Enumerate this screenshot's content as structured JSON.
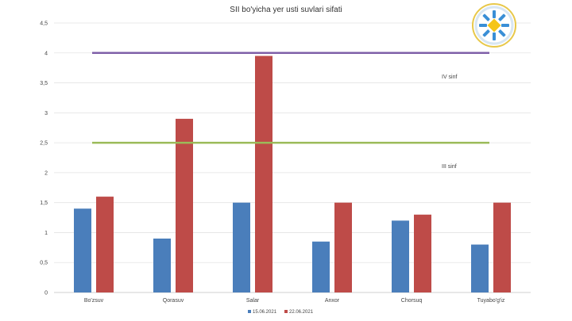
{
  "chart_data": {
    "type": "bar",
    "title": "SII bo'yicha yer usti suvlari sifati",
    "categories": [
      "Bo'zsuv",
      "Qorasuv",
      "Salar",
      "Anxor",
      "Chorsuq",
      "Tuyabo'g'iz"
    ],
    "series": [
      {
        "name": "15.06.2021",
        "color": "#4a7ebb",
        "values": [
          1.4,
          0.9,
          1.5,
          0.85,
          1.2,
          0.8
        ]
      },
      {
        "name": "22.06.2021",
        "color": "#be4b48",
        "values": [
          1.6,
          2.9,
          3.95,
          1.5,
          1.3,
          1.5
        ]
      }
    ],
    "ylim": [
      0,
      4.5
    ],
    "y_ticks": [
      "0",
      "0,5",
      "1",
      "1,5",
      "2",
      "2,5",
      "3",
      "3,5",
      "4",
      "4,5"
    ],
    "grid": true,
    "legend": "bottom",
    "reference_lines": [
      {
        "label": "IV sinf",
        "value": 4,
        "color": "#7f5fa8"
      },
      {
        "label": "III sinf",
        "value": 2.5,
        "color": "#9bbb59"
      }
    ]
  }
}
